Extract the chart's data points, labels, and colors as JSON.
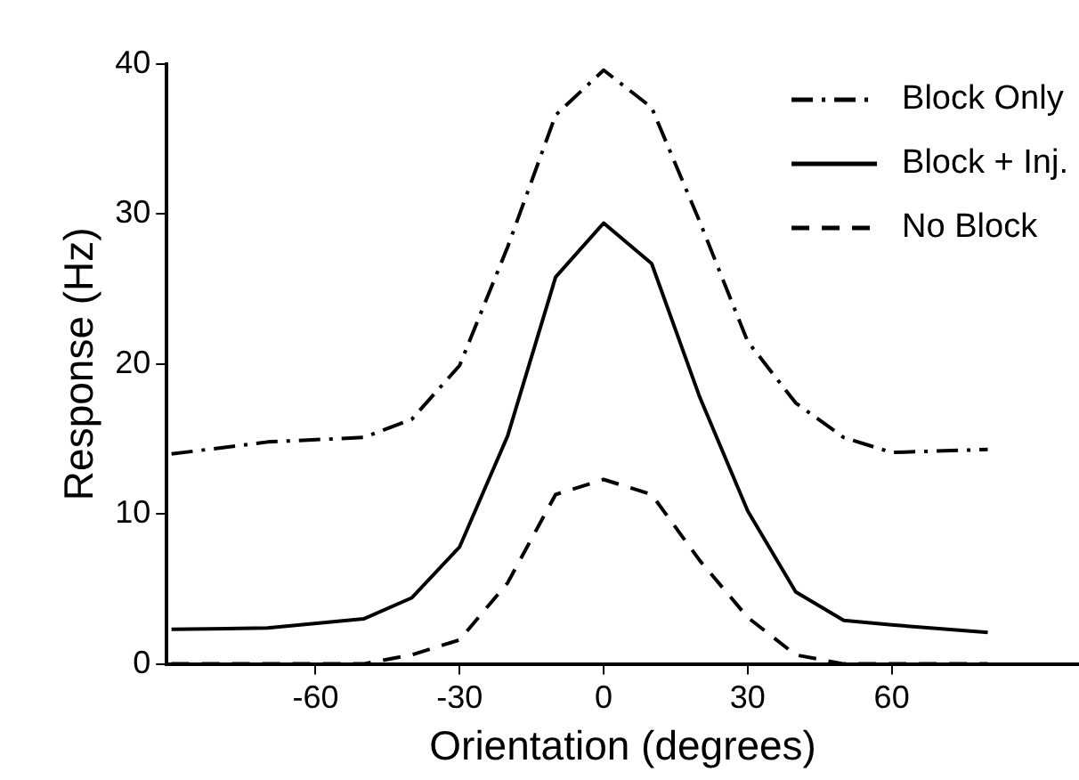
{
  "chart_data": {
    "type": "line",
    "xlabel": "Orientation (degrees)",
    "ylabel": "Response (Hz)",
    "xlim": [
      -91,
      99
    ],
    "xticks": [
      -60,
      -30,
      0,
      30,
      60
    ],
    "ylim": [
      0,
      40
    ],
    "yticks": [
      0,
      10,
      20,
      30,
      40
    ],
    "grid": false,
    "legend": "top right",
    "marker": "none",
    "series": [
      {
        "name": "Block Only",
        "color": "#000000",
        "line_style": "dashdot",
        "x": [
          -90,
          -70,
          -50,
          -40,
          -30,
          -20,
          -10,
          0,
          10,
          20,
          30,
          40,
          50,
          60,
          80
        ],
        "values": [
          14.0,
          14.8,
          15.1,
          16.3,
          19.9,
          27.8,
          36.6,
          39.6,
          37.1,
          29.5,
          21.5,
          17.4,
          15.1,
          14.1,
          14.3
        ]
      },
      {
        "name": "Block + Inj.",
        "color": "#000000",
        "line_style": "solid",
        "x": [
          -90,
          -70,
          -50,
          -40,
          -30,
          -20,
          -10,
          0,
          10,
          20,
          30,
          40,
          50,
          60,
          80
        ],
        "values": [
          2.3,
          2.4,
          3.0,
          4.4,
          7.8,
          15.2,
          25.8,
          29.4,
          26.7,
          17.8,
          10.2,
          4.8,
          2.9,
          2.6,
          2.1
        ]
      },
      {
        "name": "No Block",
        "color": "#000000",
        "line_style": "dashed",
        "x": [
          -90,
          -50,
          -40,
          -30,
          -20,
          -10,
          0,
          10,
          20,
          30,
          40,
          50,
          80
        ],
        "values": [
          0,
          0,
          0.6,
          1.6,
          5.4,
          11.3,
          12.3,
          11.3,
          6.9,
          3.1,
          0.6,
          0,
          0
        ]
      }
    ]
  }
}
